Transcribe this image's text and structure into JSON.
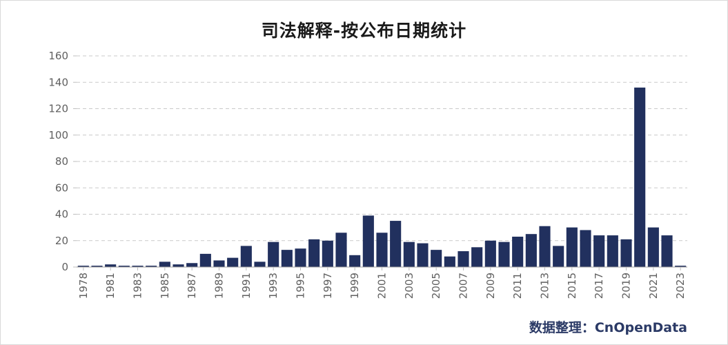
{
  "title": "司法解释-按公布日期统计",
  "source": "数据整理：CnOpenData",
  "colors": {
    "bar": "#21305e",
    "grid": "#c9c9c9",
    "axis_text": "#606060",
    "source": "#2b3a66"
  },
  "chart_data": {
    "type": "bar",
    "title": "司法解释-按公布日期统计",
    "xlabel": "",
    "ylabel": "",
    "ylim": [
      0,
      160
    ],
    "yticks": [
      0,
      20,
      40,
      60,
      80,
      100,
      120,
      140,
      160
    ],
    "grid": true,
    "categories": [
      "1978",
      "1980",
      "1981",
      "1982",
      "1983",
      "1984",
      "1985",
      "1986",
      "1987",
      "1988",
      "1989",
      "1990",
      "1991",
      "1992",
      "1993",
      "1994",
      "1995",
      "1996",
      "1997",
      "1998",
      "1999",
      "2000",
      "2001",
      "2002",
      "2003",
      "2004",
      "2005",
      "2006",
      "2007",
      "2008",
      "2009",
      "2010",
      "2011",
      "2012",
      "2013",
      "2014",
      "2015",
      "2016",
      "2017",
      "2018",
      "2019",
      "2020",
      "2021",
      "2022",
      "2023"
    ],
    "xtick_labels": [
      "1978",
      "1981",
      "1983",
      "1985",
      "1987",
      "1989",
      "1991",
      "1993",
      "1995",
      "1997",
      "1999",
      "2001",
      "2003",
      "2005",
      "2007",
      "2009",
      "2011",
      "2013",
      "2015",
      "2017",
      "2019",
      "2021",
      "2023"
    ],
    "values": [
      1,
      1,
      2,
      1,
      1,
      1,
      4,
      2,
      3,
      10,
      5,
      7,
      16,
      4,
      19,
      13,
      14,
      21,
      20,
      26,
      9,
      39,
      26,
      35,
      19,
      18,
      13,
      8,
      12,
      15,
      20,
      19,
      23,
      25,
      31,
      16,
      30,
      28,
      24,
      24,
      21,
      136,
      30,
      24,
      1
    ]
  }
}
